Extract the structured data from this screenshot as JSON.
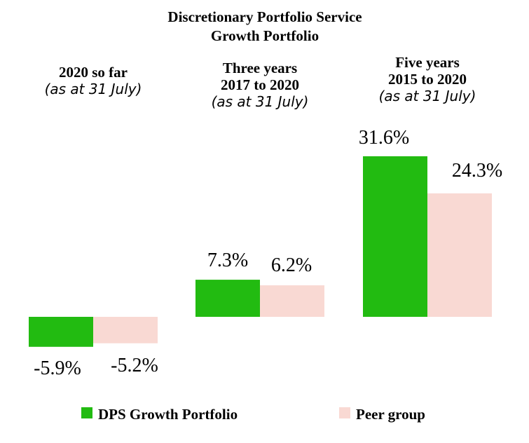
{
  "chart_data": {
    "type": "bar",
    "title": "Discretionary Portfolio Service",
    "subtitle": "Growth Portfolio",
    "categories": [
      {
        "label": "2020 so far",
        "period": "",
        "note": "(as at 31 July)"
      },
      {
        "label": "Three years",
        "period": "2017 to 2020",
        "note": "(as at 31 July)"
      },
      {
        "label": "Five years",
        "period": "2015 to 2020",
        "note": "(as at 31 July)"
      }
    ],
    "series": [
      {
        "name": "DPS Growth Portfolio",
        "color": "#22bb11",
        "values": [
          -5.9,
          7.3,
          31.6
        ],
        "labels": [
          "-5.9%",
          "7.3%",
          "31.6%"
        ]
      },
      {
        "name": "Peer group",
        "color": "#f9d9d3",
        "values": [
          -5.2,
          6.2,
          24.3
        ],
        "labels": [
          "-5.2%",
          "6.2%",
          "24.3%"
        ]
      }
    ],
    "legend": "bottom",
    "grid": false
  }
}
